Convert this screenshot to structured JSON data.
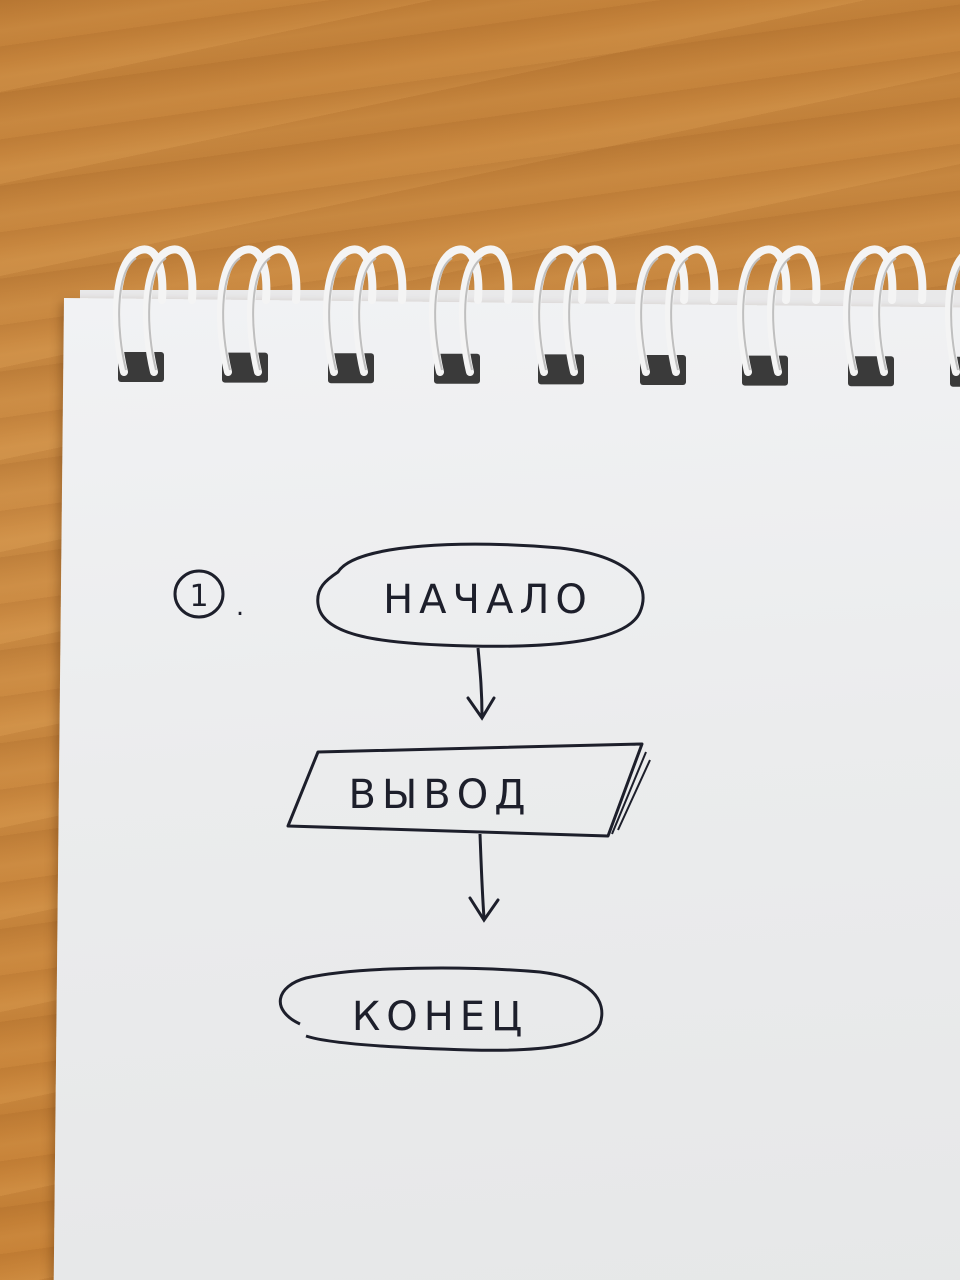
{
  "diagram": {
    "step_number": "1",
    "step_suffix": ".",
    "nodes": [
      {
        "id": "start",
        "shape": "terminator",
        "label": "НАЧАЛО"
      },
      {
        "id": "output",
        "shape": "parallelogram",
        "label": "ВЫВОД"
      },
      {
        "id": "end",
        "shape": "terminator",
        "label": "КОНЕЦ"
      }
    ],
    "edges": [
      {
        "from": "start",
        "to": "output"
      },
      {
        "from": "output",
        "to": "end"
      }
    ]
  },
  "style": {
    "ink_color": "#1d1f2b",
    "paper_color": "#ebeced",
    "desk_color": "#c98a3e",
    "ring_color": "#f4f4f4"
  }
}
